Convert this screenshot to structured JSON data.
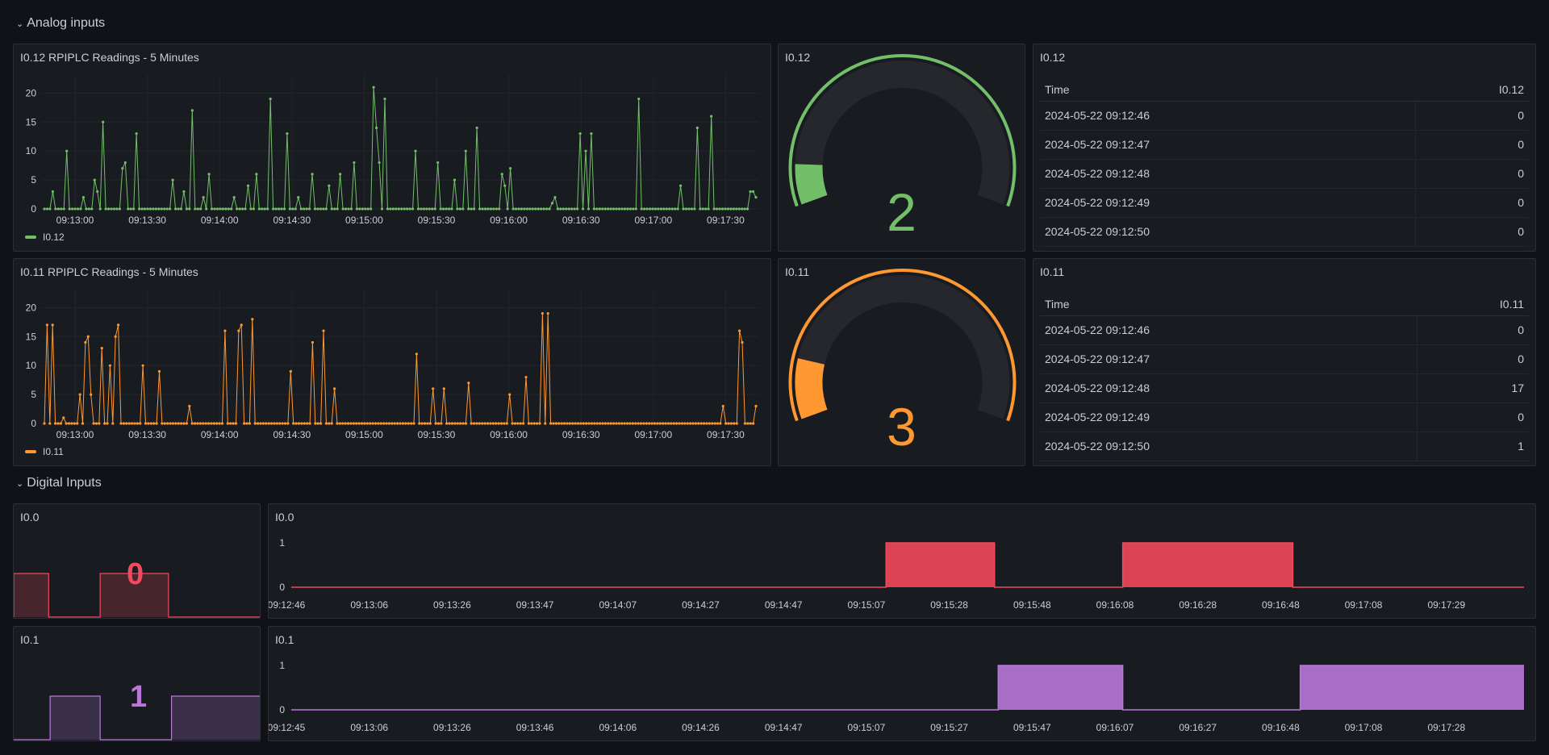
{
  "rows": {
    "analog": "Analog inputs",
    "digital": "Digital Inputs"
  },
  "analog": {
    "i012_chart": {
      "title": "I0.12 RPIPLC Readings - 5 Minutes",
      "legend": "I0.12",
      "color": "#73bf69"
    },
    "i011_chart": {
      "title": "I0.11 RPIPLC Readings - 5 Minutes",
      "legend": "I0.11",
      "color": "#ff9830"
    },
    "i012_gauge": {
      "title": "I0.12",
      "value": "2",
      "fraction": 0.1,
      "color": "#73bf69"
    },
    "i011_gauge": {
      "title": "I0.11",
      "value": "3",
      "fraction": 0.15,
      "color": "#ff9830"
    },
    "i012_table": {
      "title": "I0.12",
      "headers": [
        "Time",
        "I0.12"
      ],
      "rows": [
        [
          "2024-05-22 09:12:46",
          "0"
        ],
        [
          "2024-05-22 09:12:47",
          "0"
        ],
        [
          "2024-05-22 09:12:48",
          "0"
        ],
        [
          "2024-05-22 09:12:49",
          "0"
        ],
        [
          "2024-05-22 09:12:50",
          "0"
        ]
      ]
    },
    "i011_table": {
      "title": "I0.11",
      "headers": [
        "Time",
        "I0.11"
      ],
      "rows": [
        [
          "2024-05-22 09:12:46",
          "0"
        ],
        [
          "2024-05-22 09:12:47",
          "0"
        ],
        [
          "2024-05-22 09:12:48",
          "17"
        ],
        [
          "2024-05-22 09:12:49",
          "0"
        ],
        [
          "2024-05-22 09:12:50",
          "1"
        ]
      ]
    }
  },
  "digital": {
    "i00_stat": {
      "title": "I0.0",
      "value": "0",
      "color": "#f2495c"
    },
    "i01_stat": {
      "title": "I0.1",
      "value": "1",
      "color": "#b877d9"
    },
    "i00_chart": {
      "title": "I0.0",
      "color": "#f2495c"
    },
    "i01_chart": {
      "title": "I0.1",
      "color": "#b877d9"
    }
  },
  "chart_data": [
    {
      "type": "line",
      "series": [
        {
          "name": "I0.12",
          "values": [
            0,
            0,
            0,
            3,
            0,
            0,
            0,
            0,
            10,
            0,
            0,
            0,
            0,
            0,
            2,
            0,
            0,
            0,
            5,
            3,
            0,
            15,
            0,
            0,
            0,
            0,
            0,
            0,
            7,
            8,
            0,
            0,
            0,
            13,
            0,
            0,
            0,
            0,
            0,
            0,
            0,
            0,
            0,
            0,
            0,
            0,
            5,
            0,
            0,
            0,
            3,
            0,
            0,
            17,
            0,
            0,
            0,
            2,
            0,
            6,
            0,
            0,
            0,
            0,
            0,
            0,
            0,
            0,
            2,
            0,
            0,
            0,
            0,
            4,
            0,
            0,
            6,
            0,
            0,
            0,
            0,
            19,
            0,
            0,
            0,
            0,
            0,
            13,
            0,
            0,
            0,
            2,
            0,
            0,
            0,
            0,
            6,
            0,
            0,
            0,
            0,
            0,
            4,
            0,
            0,
            0,
            6,
            0,
            0,
            0,
            0,
            8,
            0,
            0,
            0,
            0,
            0,
            0,
            21,
            14,
            8,
            0,
            19,
            0,
            0,
            0,
            0,
            0,
            0,
            0,
            0,
            0,
            0,
            10,
            0,
            0,
            0,
            0,
            0,
            0,
            0,
            8,
            0,
            0,
            0,
            0,
            0,
            5,
            0,
            0,
            0,
            10,
            0,
            0,
            0,
            14,
            0,
            0,
            0,
            0,
            0,
            0,
            0,
            0,
            6,
            4,
            0,
            7,
            0,
            0,
            0,
            0,
            0,
            0,
            0,
            0,
            0,
            0,
            0,
            0,
            0,
            0,
            1,
            2,
            0,
            0,
            0,
            0,
            0,
            0,
            0,
            0,
            13,
            0,
            10,
            0,
            13,
            0,
            0,
            0,
            0,
            0,
            0,
            0,
            0,
            0,
            0,
            0,
            0,
            0,
            0,
            0,
            0,
            19,
            0,
            0,
            0,
            0,
            0,
            0,
            0,
            0,
            0,
            0,
            0,
            0,
            0,
            0,
            4,
            0,
            0,
            0,
            0,
            0,
            14,
            0,
            0,
            0,
            0,
            16,
            0,
            0,
            0,
            0,
            0,
            0,
            0,
            0,
            0,
            0,
            0,
            0,
            0,
            3,
            3,
            2
          ]
        }
      ],
      "x_ticks": [
        "09:13:00",
        "09:13:30",
        "09:14:00",
        "09:14:30",
        "09:15:00",
        "09:15:30",
        "09:16:00",
        "09:16:30",
        "09:17:00",
        "09:17:30"
      ],
      "y_ticks": [
        0,
        5,
        10,
        15,
        20
      ],
      "ylim": [
        0,
        22
      ]
    },
    {
      "type": "line",
      "series": [
        {
          "name": "I0.11",
          "values": [
            0,
            17,
            0,
            17,
            0,
            0,
            0,
            1,
            0,
            0,
            0,
            0,
            0,
            5,
            0,
            14,
            15,
            5,
            0,
            0,
            0,
            13,
            0,
            0,
            10,
            0,
            15,
            17,
            0,
            0,
            0,
            0,
            0,
            0,
            0,
            0,
            10,
            0,
            0,
            0,
            0,
            0,
            9,
            0,
            0,
            0,
            0,
            0,
            0,
            0,
            0,
            0,
            0,
            3,
            0,
            0,
            0,
            0,
            0,
            0,
            0,
            0,
            0,
            0,
            0,
            0,
            16,
            0,
            0,
            0,
            0,
            16,
            17,
            0,
            0,
            0,
            18,
            0,
            0,
            0,
            0,
            0,
            0,
            0,
            0,
            0,
            0,
            0,
            0,
            0,
            9,
            0,
            0,
            0,
            0,
            0,
            0,
            0,
            14,
            0,
            0,
            0,
            16,
            0,
            0,
            0,
            6,
            0,
            0,
            0,
            0,
            0,
            0,
            0,
            0,
            0,
            0,
            0,
            0,
            0,
            0,
            0,
            0,
            0,
            0,
            0,
            0,
            0,
            0,
            0,
            0,
            0,
            0,
            0,
            0,
            0,
            12,
            0,
            0,
            0,
            0,
            0,
            6,
            0,
            0,
            0,
            6,
            0,
            0,
            0,
            0,
            0,
            0,
            0,
            0,
            7,
            0,
            0,
            0,
            0,
            0,
            0,
            0,
            0,
            0,
            0,
            0,
            0,
            0,
            0,
            5,
            0,
            0,
            0,
            0,
            0,
            8,
            0,
            0,
            0,
            0,
            0,
            19,
            0,
            19,
            0,
            0,
            0,
            0,
            0,
            0,
            0,
            0,
            0,
            0,
            0,
            0,
            0,
            0,
            0,
            0,
            0,
            0,
            0,
            0,
            0,
            0,
            0,
            0,
            0,
            0,
            0,
            0,
            0,
            0,
            0,
            0,
            0,
            0,
            0,
            0,
            0,
            0,
            0,
            0,
            0,
            0,
            0,
            0,
            0,
            0,
            0,
            0,
            0,
            0,
            0,
            0,
            0,
            0,
            0,
            0,
            0,
            0,
            0,
            0,
            0,
            0,
            0,
            3,
            0,
            0,
            0,
            0,
            0,
            16,
            14,
            0,
            0,
            0,
            0,
            3
          ]
        }
      ],
      "x_ticks": [
        "09:13:00",
        "09:13:30",
        "09:14:00",
        "09:14:30",
        "09:15:00",
        "09:15:30",
        "09:16:00",
        "09:16:30",
        "09:17:00",
        "09:17:30"
      ],
      "y_ticks": [
        0,
        5,
        10,
        15,
        20
      ],
      "ylim": [
        0,
        22
      ]
    },
    {
      "type": "area",
      "series": [
        {
          "name": "I0.0",
          "segments": [
            [
              0.0,
              0
            ],
            [
              0.4825,
              1
            ],
            [
              0.5705,
              0
            ],
            [
              0.6745,
              1
            ],
            [
              0.8125,
              0
            ],
            [
              1.0,
              0
            ]
          ]
        }
      ],
      "x_ticks": [
        "09:12:46",
        "09:13:06",
        "09:13:26",
        "09:13:47",
        "09:14:07",
        "09:14:27",
        "09:14:47",
        "09:15:07",
        "09:15:28",
        "09:15:48",
        "09:16:08",
        "09:16:28",
        "09:16:48",
        "09:17:08",
        "09:17:29"
      ],
      "y_ticks": [
        0,
        1
      ],
      "ylim": [
        0,
        1
      ]
    },
    {
      "type": "area",
      "series": [
        {
          "name": "I0.1",
          "segments": [
            [
              0.0,
              0
            ],
            [
              0.5735,
              1
            ],
            [
              0.6745,
              0
            ],
            [
              0.8185,
              1
            ],
            [
              1.0,
              1
            ]
          ]
        }
      ],
      "x_ticks": [
        "09:12:45",
        "09:13:06",
        "09:13:26",
        "09:13:46",
        "09:14:06",
        "09:14:26",
        "09:14:47",
        "09:15:07",
        "09:15:27",
        "09:15:47",
        "09:16:07",
        "09:16:27",
        "09:16:48",
        "09:17:08",
        "09:17:28"
      ],
      "y_ticks": [
        0,
        1
      ],
      "ylim": [
        0,
        1
      ]
    }
  ]
}
